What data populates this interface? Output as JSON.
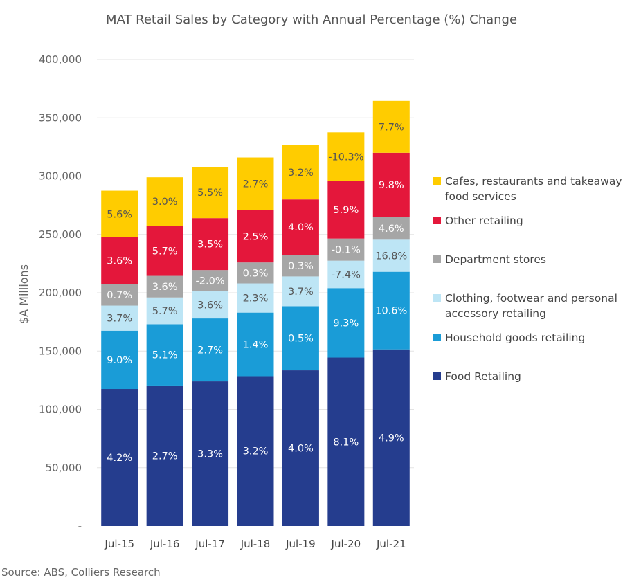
{
  "chart_data": {
    "type": "bar",
    "stacked": true,
    "title": "MAT Retail Sales by Category with Annual Percentage (%) Change",
    "ylabel": "$A Millions",
    "xlabel": "",
    "ylim": [
      0,
      400000
    ],
    "yticks": [
      0,
      50000,
      100000,
      150000,
      200000,
      250000,
      300000,
      350000,
      400000
    ],
    "ytick_labels": [
      "-",
      "50,000",
      "100,000",
      "150,000",
      "200,000",
      "250,000",
      "300,000",
      "350,000",
      "400,000"
    ],
    "grid": true,
    "legend_position": "right",
    "categories": [
      "Jul-15",
      "Jul-16",
      "Jul-17",
      "Jul-18",
      "Jul-19",
      "Jul-20",
      "Jul-21"
    ],
    "series": [
      {
        "name": "Food Retailing",
        "color": "#253D8E",
        "label_color": "#ffffff",
        "values": [
          117500,
          120500,
          124000,
          128500,
          133500,
          144500,
          151500
        ],
        "labels": [
          "4.2%",
          "2.7%",
          "3.3%",
          "3.2%",
          "4.0%",
          "8.1%",
          "4.9%"
        ]
      },
      {
        "name": "Household goods retailing",
        "color": "#1A9CD7",
        "label_color": "#ffffff",
        "values": [
          50000,
          52500,
          54000,
          54500,
          55000,
          59500,
          66500
        ],
        "labels": [
          "9.0%",
          "5.1%",
          "2.7%",
          "1.4%",
          "0.5%",
          "9.3%",
          "10.6%"
        ]
      },
      {
        "name": "Clothing, footwear and personal accessory retailing",
        "color": "#BDE5F5",
        "label_color": "#555555",
        "values": [
          21500,
          23000,
          23500,
          25000,
          25500,
          23500,
          27500
        ],
        "labels": [
          "3.7%",
          "5.7%",
          "3.6%",
          "2.3%",
          "3.7%",
          "-7.4%",
          "16.8%"
        ]
      },
      {
        "name": "Department stores",
        "color": "#A6A6A6",
        "label_color": "#ffffff",
        "values": [
          18500,
          18500,
          18000,
          18000,
          18500,
          19000,
          19500
        ],
        "labels": [
          "0.7%",
          "3.6%",
          "-2.0%",
          "0.3%",
          "0.3%",
          "-0.1%",
          "4.6%"
        ]
      },
      {
        "name": "Other retailing",
        "color": "#E4173B",
        "label_color": "#ffffff",
        "values": [
          40000,
          43000,
          44500,
          45000,
          47500,
          49500,
          55000
        ],
        "labels": [
          "3.6%",
          "5.7%",
          "3.5%",
          "2.5%",
          "4.0%",
          "5.9%",
          "9.8%"
        ]
      },
      {
        "name": "Cafes, restaurants and takeaway food services",
        "color": "#FFCC00",
        "label_color": "#555555",
        "values": [
          40000,
          41500,
          44000,
          45000,
          46500,
          41500,
          44500
        ],
        "labels": [
          "5.6%",
          "3.0%",
          "5.5%",
          "2.7%",
          "3.2%",
          "-10.3%",
          "7.7%"
        ]
      }
    ],
    "legend_order": [
      {
        "lines": [
          "Cafes, restaurants and takeaway",
          "food services"
        ],
        "series": 5
      },
      {
        "lines": [
          "Other retailing"
        ],
        "series": 4
      },
      {
        "lines": [
          "Department stores"
        ],
        "series": 3
      },
      {
        "lines": [
          "Clothing, footwear and personal",
          "accessory retailing"
        ],
        "series": 2
      },
      {
        "lines": [
          "Household goods retailing"
        ],
        "series": 1
      },
      {
        "lines": [
          "Food Retailing"
        ],
        "series": 0
      }
    ]
  },
  "source": "Source: ABS, Colliers Research"
}
